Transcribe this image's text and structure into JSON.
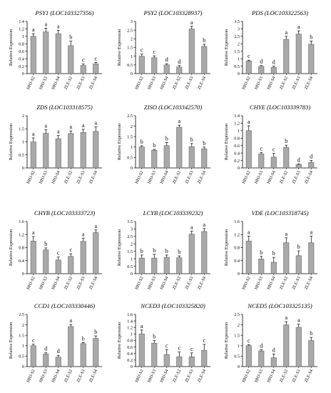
{
  "chart_data": [
    {
      "type": "bar",
      "title": "PSY1 (LOC103327356)",
      "ylabel": "Relative Expression",
      "categories": [
        "HHJ-S2",
        "HHJ-S3",
        "HHJ-S4",
        "ZLE-S2",
        "ZLE-S3",
        "ZLE-S4"
      ],
      "values": [
        1.0,
        1.12,
        1.07,
        0.75,
        0.22,
        0.26
      ],
      "errors": [
        0.07,
        0.1,
        0.09,
        0.12,
        0.04,
        0.04
      ],
      "letters": [
        "a",
        "a",
        "a",
        "b",
        "c",
        "c"
      ],
      "ylim": [
        0,
        1.4
      ],
      "yticks": [
        "0",
        "0.2",
        "0.4",
        "0.6",
        "0.8",
        "1",
        "1.2",
        "1.4"
      ],
      "bar_color": "#a9a9a9"
    },
    {
      "type": "bar",
      "title": "PSY2 (LOC103328937)",
      "ylabel": "Relative Expression",
      "categories": [
        "HHJ-S2",
        "HHJ-S3",
        "HHJ-S4",
        "ZLE-S2",
        "ZLE-S3",
        "ZLE-S4"
      ],
      "values": [
        1.0,
        0.92,
        0.5,
        0.38,
        2.57,
        1.57
      ],
      "errors": [
        0.12,
        0.1,
        0.07,
        0.08,
        0.15,
        0.12
      ],
      "letters": [
        "c",
        "c",
        "d",
        "d",
        "a",
        "b"
      ],
      "ylim": [
        0,
        3
      ],
      "yticks": [
        "0",
        "0.5",
        "1",
        "1.5",
        "2",
        "2.5",
        "3"
      ],
      "bar_color": "#a9a9a9"
    },
    {
      "type": "bar",
      "title": "PDS (LOC103322563)",
      "ylabel": "Relative Expression",
      "categories": [
        "HHJ-S2",
        "HHJ-S3",
        "HHJ-S4",
        "ZLE-S2",
        "ZLE-S3",
        "ZLE-S4"
      ],
      "values": [
        0.85,
        0.48,
        0.42,
        2.3,
        2.65,
        1.97
      ],
      "errors": [
        0.05,
        0.06,
        0.08,
        0.2,
        0.22,
        0.22
      ],
      "letters": [
        "c",
        "d",
        "d",
        "a",
        "a",
        "b"
      ],
      "ylim": [
        0,
        3.5
      ],
      "yticks": [
        "0",
        "0.5",
        "1",
        "1.5",
        "2",
        "2.5",
        "3",
        "3.5"
      ],
      "bar_color": "#a9a9a9"
    },
    {
      "type": "bar",
      "title": "ZDS (LOC103318575)",
      "ylabel": "Relative Expression",
      "categories": [
        "HHJ-S2",
        "HHJ-S3",
        "HHJ-S4",
        "ZLE-S2",
        "ZLE-S3",
        "ZLE-S4"
      ],
      "values": [
        1.0,
        1.33,
        1.12,
        1.32,
        1.36,
        1.4
      ],
      "errors": [
        0.15,
        0.13,
        0.12,
        0.1,
        0.12,
        0.17
      ],
      "letters": [
        "a",
        "a",
        "a",
        "a",
        "a",
        "a"
      ],
      "ylim": [
        0,
        2
      ],
      "yticks": [
        "0",
        "0.5",
        "1",
        "1.5",
        "2"
      ],
      "bar_color": "#a9a9a9"
    },
    {
      "type": "bar",
      "title": "ZISO (LOC103342570)",
      "ylabel": "Relative Expression",
      "categories": [
        "HHJ-S2",
        "HHJ-S3",
        "HHJ-S4",
        "ZLE-S2",
        "ZLE-S3",
        "ZLE-S4"
      ],
      "values": [
        1.0,
        0.85,
        1.07,
        1.95,
        1.02,
        0.92
      ],
      "errors": [
        0.06,
        0.04,
        0.15,
        0.1,
        0.15,
        0.08
      ],
      "letters": [
        "b",
        "b",
        "b",
        "a",
        "b",
        "b"
      ],
      "ylim": [
        0,
        2.5
      ],
      "yticks": [
        "0",
        "0.5",
        "1",
        "1.5",
        "2",
        "2.5"
      ],
      "bar_color": "#a9a9a9"
    },
    {
      "type": "bar",
      "title": "CHYE (LOC103339783)",
      "ylabel": "Relative Expression",
      "categories": [
        "HHJ-S2",
        "HHJ-S3",
        "HHJ-S4",
        "ZLE-S2",
        "ZLE-S3",
        "ZLE-S4"
      ],
      "values": [
        1.0,
        0.38,
        0.29,
        0.55,
        0.09,
        0.15
      ],
      "errors": [
        0.13,
        0.03,
        0.1,
        0.06,
        0.02,
        0.05
      ],
      "letters": [
        "a",
        "c",
        "c",
        "b",
        "d",
        "d"
      ],
      "ylim": [
        0,
        1.4
      ],
      "yticks": [
        "0",
        "0.2",
        "0.4",
        "0.6",
        "0.8",
        "1",
        "1.2",
        "1.4"
      ],
      "bar_color": "#a9a9a9"
    },
    {
      "type": "bar",
      "title": "CHYB (LOC103333723)",
      "ylabel": "Relative Expression",
      "categories": [
        "HHJ-S2",
        "HHJ-S3",
        "HHJ-S4",
        "ZLE-S2",
        "ZLE-S3",
        "ZLE-S4"
      ],
      "values": [
        1.0,
        0.73,
        0.42,
        0.53,
        0.99,
        1.26
      ],
      "errors": [
        0.14,
        0.06,
        0.09,
        0.08,
        0.1,
        0.08
      ],
      "letters": [
        "a",
        "b",
        "c",
        "c",
        "a",
        "a"
      ],
      "ylim": [
        0,
        1.6
      ],
      "yticks": [
        "0",
        "0.4",
        "0.8",
        "1.2",
        "1.6"
      ],
      "bar_color": "#a9a9a9"
    },
    {
      "type": "bar",
      "title": "LCYB (LOC103339232)",
      "ylabel": "Relative Expression",
      "categories": [
        "HHJ-S2",
        "HHJ-S3",
        "HHJ-S4",
        "ZLE-S2",
        "ZLE-S3",
        "ZLE-S4"
      ],
      "values": [
        1.05,
        1.05,
        1.1,
        1.07,
        2.65,
        2.83
      ],
      "errors": [
        0.2,
        0.25,
        0.15,
        0.12,
        0.2,
        0.2
      ],
      "letters": [
        "b",
        "b",
        "b",
        "b",
        "a",
        "a"
      ],
      "ylim": [
        0,
        3.5
      ],
      "yticks": [
        "0",
        "0.5",
        "1",
        "1.5",
        "2",
        "2.5",
        "3",
        "3.5"
      ],
      "bar_color": "#a9a9a9"
    },
    {
      "type": "bar",
      "title": "VDE (LOC103318745)",
      "ylabel": "Relative Expression",
      "categories": [
        "HHJ-S2",
        "HHJ-S3",
        "HHJ-S4",
        "ZLE-S2",
        "ZLE-S3",
        "ZLE-S4"
      ],
      "values": [
        1.0,
        0.45,
        0.35,
        0.95,
        0.55,
        0.95
      ],
      "errors": [
        0.15,
        0.08,
        0.15,
        0.15,
        0.15,
        0.2
      ],
      "letters": [
        "a",
        "b",
        "b",
        "a",
        "b",
        "a"
      ],
      "ylim": [
        0,
        1.6
      ],
      "yticks": [
        "0",
        "0.4",
        "0.8",
        "1.2",
        "1.6"
      ],
      "bar_color": "#a9a9a9"
    },
    {
      "type": "bar",
      "title": "CCD1 (LOC103330446)",
      "ylabel": "Relative Expression",
      "categories": [
        "HHJ-S2",
        "HHJ-S3",
        "HHJ-S4",
        "ZLE-S2",
        "ZLE-S3",
        "ZLE-S4"
      ],
      "values": [
        1.0,
        0.6,
        0.45,
        1.92,
        1.1,
        1.35
      ],
      "errors": [
        0.07,
        0.06,
        0.09,
        0.1,
        0.05,
        0.12
      ],
      "letters": [
        "c",
        "d",
        "d",
        "a",
        "b",
        "b"
      ],
      "ylim": [
        0,
        2.5
      ],
      "yticks": [
        "0",
        "0.5",
        "1",
        "1.5",
        "2",
        "2.5"
      ],
      "bar_color": "#a9a9a9"
    },
    {
      "type": "bar",
      "title": "NCED3 (LOC103325820)",
      "ylabel": "Relative Expression",
      "categories": [
        "HHJ-S2",
        "HHJ-S3",
        "HHJ-S4",
        "ZLE-S2",
        "ZLE-S3",
        "ZLE-S4"
      ],
      "values": [
        1.0,
        0.72,
        0.37,
        0.3,
        0.3,
        0.5
      ],
      "errors": [
        0.12,
        0.08,
        0.15,
        0.15,
        0.12,
        0.18
      ],
      "letters": [
        "a",
        "b",
        "c",
        "c",
        "c",
        "c"
      ],
      "ylim": [
        0,
        1.6
      ],
      "yticks": [
        "0",
        "0.2",
        "0.4",
        "0.6",
        "0.8",
        "1",
        "1.2",
        "1.4",
        "1.6"
      ],
      "bar_color": "#a9a9a9"
    },
    {
      "type": "bar",
      "title": "NCED5 (LOC103325135)",
      "ylabel": "Relative Expression",
      "categories": [
        "HHJ-S2",
        "HHJ-S3",
        "HHJ-S4",
        "ZLE-S2",
        "ZLE-S3",
        "ZLE-S4"
      ],
      "values": [
        1.0,
        0.75,
        0.42,
        2.0,
        1.88,
        1.25
      ],
      "errors": [
        0.05,
        0.05,
        0.18,
        0.15,
        0.15,
        0.15
      ],
      "letters": [
        "c",
        "d",
        "d",
        "a",
        "a",
        "b"
      ],
      "ylim": [
        0,
        2.5
      ],
      "yticks": [
        "0",
        "0.5",
        "1",
        "1.5",
        "2",
        "2.5"
      ],
      "bar_color": "#a9a9a9"
    }
  ]
}
